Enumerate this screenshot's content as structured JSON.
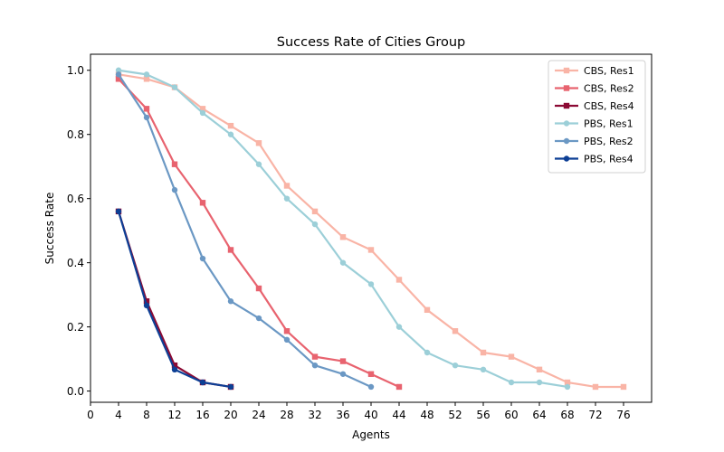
{
  "chart_data": {
    "type": "line",
    "title": "Success Rate of Cities Group",
    "xlabel": "Agents",
    "ylabel": "Success Rate",
    "xlim": [
      0,
      80
    ],
    "ylim": [
      -0.035,
      1.05
    ],
    "xticks": [
      0,
      4,
      8,
      12,
      16,
      20,
      24,
      28,
      32,
      36,
      40,
      44,
      48,
      52,
      56,
      60,
      64,
      68,
      72,
      76
    ],
    "yticks": [
      0.0,
      0.2,
      0.4,
      0.6,
      0.8,
      1.0
    ],
    "ytick_labels": [
      "0.0",
      "0.2",
      "0.4",
      "0.6",
      "0.8",
      "1.0"
    ],
    "grid": false,
    "legend_position": "top-right",
    "series": [
      {
        "name": "CBS, Res1",
        "color": "#f9b4a6",
        "marker": "square",
        "x": [
          4,
          8,
          12,
          16,
          20,
          24,
          28,
          32,
          36,
          40,
          44,
          48,
          52,
          56,
          60,
          64,
          68,
          72,
          76
        ],
        "y": [
          0.987,
          0.973,
          0.947,
          0.88,
          0.827,
          0.773,
          0.64,
          0.56,
          0.48,
          0.44,
          0.347,
          0.253,
          0.187,
          0.12,
          0.107,
          0.067,
          0.027,
          0.013,
          0.013
        ]
      },
      {
        "name": "CBS, Res2",
        "color": "#e8636f",
        "marker": "square",
        "x": [
          4,
          8,
          12,
          16,
          20,
          24,
          28,
          32,
          36,
          40,
          44
        ],
        "y": [
          0.973,
          0.88,
          0.707,
          0.587,
          0.44,
          0.32,
          0.187,
          0.107,
          0.093,
          0.053,
          0.013
        ]
      },
      {
        "name": "CBS, Res4",
        "color": "#8c0a34",
        "marker": "square",
        "x": [
          4,
          8,
          12,
          16,
          20
        ],
        "y": [
          0.56,
          0.28,
          0.08,
          0.027,
          0.013
        ]
      },
      {
        "name": "PBS, Res1",
        "color": "#9ccfd8",
        "marker": "circle",
        "x": [
          4,
          8,
          12,
          16,
          20,
          24,
          28,
          32,
          36,
          40,
          44,
          48,
          52,
          56,
          60,
          64,
          68
        ],
        "y": [
          1.0,
          0.987,
          0.947,
          0.867,
          0.8,
          0.707,
          0.6,
          0.52,
          0.4,
          0.333,
          0.2,
          0.12,
          0.08,
          0.067,
          0.027,
          0.027,
          0.013
        ]
      },
      {
        "name": "PBS, Res2",
        "color": "#6b98c4",
        "marker": "circle",
        "x": [
          4,
          8,
          12,
          16,
          20,
          24,
          28,
          32,
          36,
          40
        ],
        "y": [
          0.987,
          0.853,
          0.627,
          0.413,
          0.28,
          0.227,
          0.16,
          0.08,
          0.053,
          0.013
        ]
      },
      {
        "name": "PBS, Res4",
        "color": "#0d3f95",
        "marker": "circle",
        "x": [
          4,
          8,
          12,
          16,
          20
        ],
        "y": [
          0.56,
          0.267,
          0.067,
          0.027,
          0.013
        ]
      }
    ]
  }
}
